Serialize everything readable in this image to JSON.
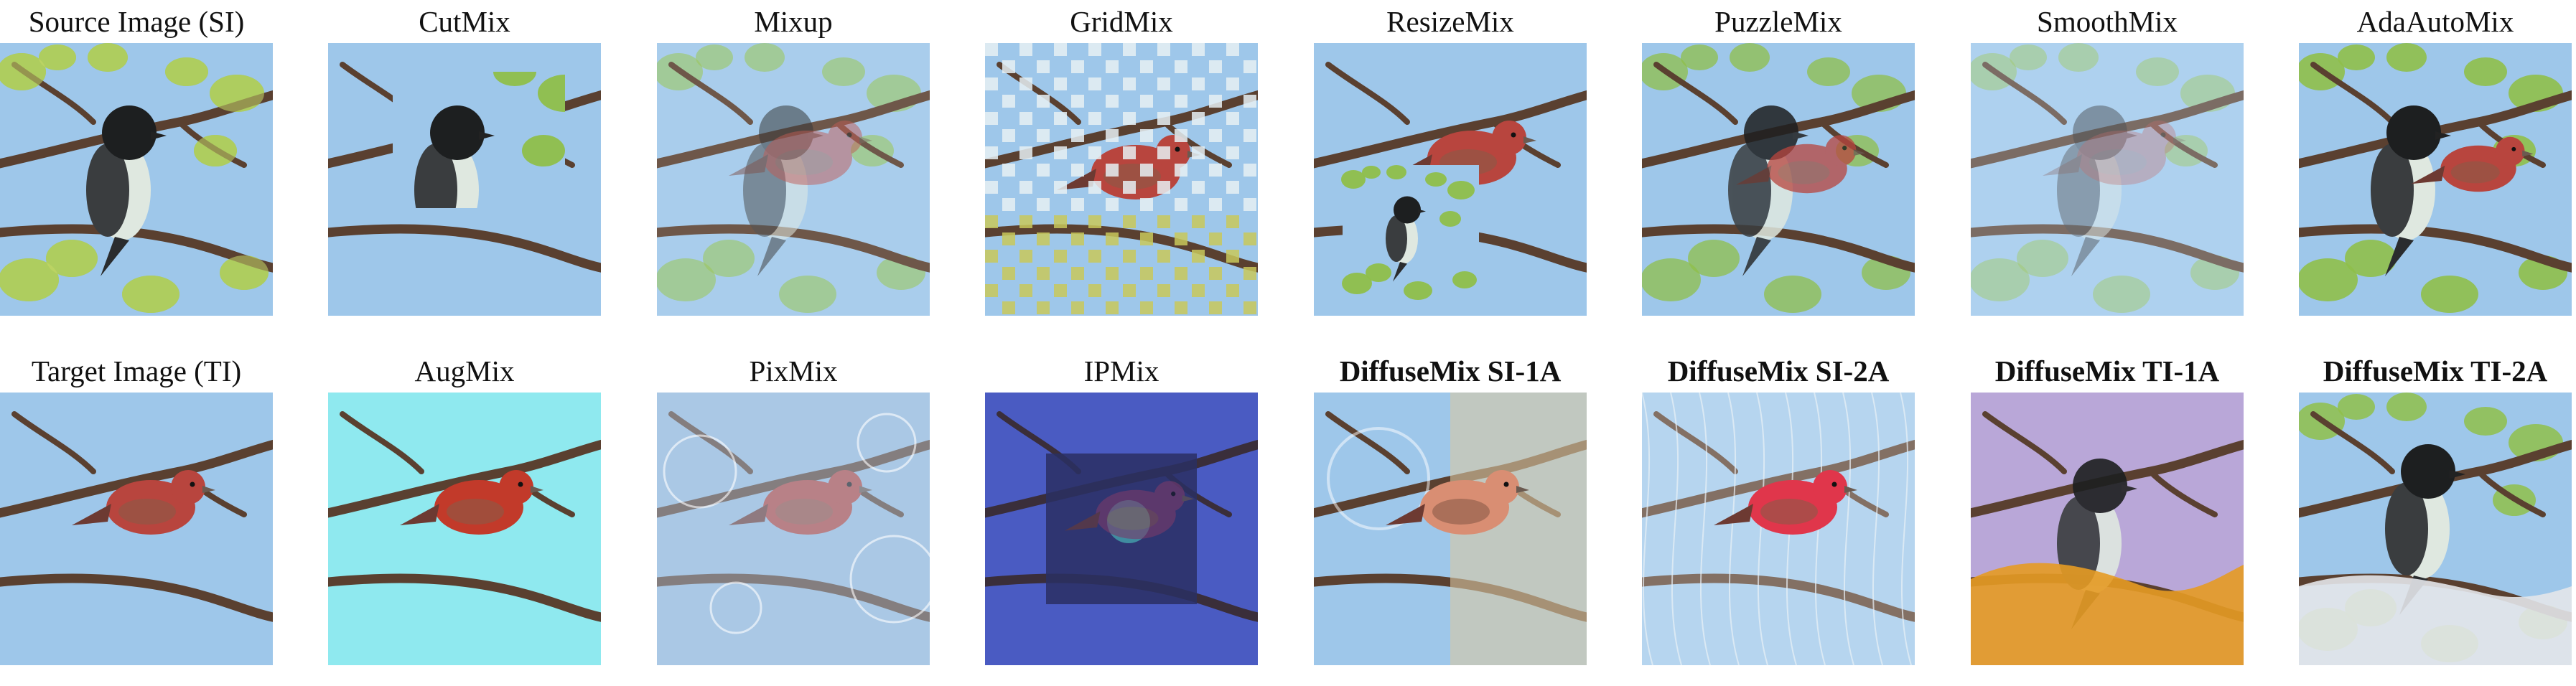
{
  "figure": {
    "rows": [
      {
        "cells": [
          {
            "caption": "Source Image (SI)",
            "bold": false,
            "variant": "source"
          },
          {
            "caption": "CutMix",
            "bold": false,
            "variant": "cutmix"
          },
          {
            "caption": "Mixup",
            "bold": false,
            "variant": "mixup"
          },
          {
            "caption": "GridMix",
            "bold": false,
            "variant": "gridmix"
          },
          {
            "caption": "ResizeMix",
            "bold": false,
            "variant": "resizemix"
          },
          {
            "caption": "PuzzleMix",
            "bold": false,
            "variant": "puzzlemix"
          },
          {
            "caption": "SmoothMix",
            "bold": false,
            "variant": "smoothmix"
          },
          {
            "caption": "AdaAutoMix",
            "bold": false,
            "variant": "adaautomix"
          }
        ]
      },
      {
        "cells": [
          {
            "caption": "Target Image (TI)",
            "bold": false,
            "variant": "target"
          },
          {
            "caption": "AugMix",
            "bold": false,
            "variant": "augmix"
          },
          {
            "caption": "PixMix",
            "bold": false,
            "variant": "pixmix"
          },
          {
            "caption": "IPMix",
            "bold": false,
            "variant": "ipmix"
          },
          {
            "caption": "DiffuseMix SI-1A",
            "bold": true,
            "variant": "diffuse_si1a"
          },
          {
            "caption": "DiffuseMix SI-2A",
            "bold": true,
            "variant": "diffuse_si2a"
          },
          {
            "caption": "DiffuseMix TI-1A",
            "bold": true,
            "variant": "diffuse_ti1a"
          },
          {
            "caption": "DiffuseMix TI-2A",
            "bold": true,
            "variant": "diffuse_ti2a"
          }
        ]
      }
    ],
    "colors": {
      "sky": "#9ec7ea",
      "branch": "#5a4030",
      "leaf": "#8fbf4a",
      "red_finch": "#b8453e",
      "black_bird_head": "#1d1f20",
      "white_breast": "#dfe8e0",
      "cyan_augmix": "#8fe9ef",
      "blue_ipmix": "#4a5bc2",
      "orange_leaves": "#e59b23",
      "lavender": "#b9a7d8",
      "pixmix_tint": "#b9c9e0"
    }
  }
}
